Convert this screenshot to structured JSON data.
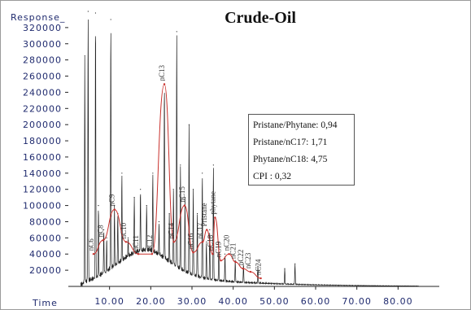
{
  "chart_data": {
    "type": "line",
    "title": "Crude-Oil",
    "ylabel": "Response_",
    "xlabel": "Time",
    "xlim": [
      0,
      90
    ],
    "ylim": [
      0,
      340000
    ],
    "y_ticks": [
      "20000",
      "40000",
      "60000",
      "80000",
      "100000",
      "120000",
      "140000",
      "160000",
      "180000",
      "200000",
      "220000",
      "240000",
      "260000",
      "280000",
      "300000",
      "320000"
    ],
    "x_ticks": [
      "10.00",
      "20.00",
      "30.00",
      "40.00",
      "50.00",
      "60.00",
      "70.00",
      "80.00"
    ],
    "x_tick_values": [
      10,
      20,
      30,
      40,
      50,
      60,
      70,
      80
    ],
    "chromatogram_peaks": [
      {
        "x": 4.0,
        "y": 285000
      },
      {
        "x": 4.8,
        "y": 340000
      },
      {
        "x": 6.6,
        "y": 338000
      },
      {
        "x": 7.3,
        "y": 100000
      },
      {
        "x": 8.6,
        "y": 70000
      },
      {
        "x": 9.3,
        "y": 60000
      },
      {
        "x": 10.3,
        "y": 330000
      },
      {
        "x": 11.2,
        "y": 100000
      },
      {
        "x": 12.0,
        "y": 90000
      },
      {
        "x": 13.0,
        "y": 140000
      },
      {
        "x": 14.5,
        "y": 60000
      },
      {
        "x": 16.0,
        "y": 110000
      },
      {
        "x": 17.5,
        "y": 120000
      },
      {
        "x": 19.0,
        "y": 100000
      },
      {
        "x": 20.5,
        "y": 140000
      },
      {
        "x": 22.0,
        "y": 80000
      },
      {
        "x": 23.3,
        "y": 255000
      },
      {
        "x": 24.5,
        "y": 90000
      },
      {
        "x": 25.5,
        "y": 120000
      },
      {
        "x": 26.3,
        "y": 315000
      },
      {
        "x": 27.2,
        "y": 150000
      },
      {
        "x": 28.3,
        "y": 110000
      },
      {
        "x": 29.3,
        "y": 200000
      },
      {
        "x": 30.3,
        "y": 120000
      },
      {
        "x": 31.3,
        "y": 90000
      },
      {
        "x": 32.5,
        "y": 140000
      },
      {
        "x": 33.5,
        "y": 55000
      },
      {
        "x": 34.3,
        "y": 70000
      },
      {
        "x": 35.2,
        "y": 150000
      },
      {
        "x": 36.5,
        "y": 55000
      },
      {
        "x": 38.0,
        "y": 40000
      },
      {
        "x": 40.5,
        "y": 32000
      },
      {
        "x": 42.5,
        "y": 28000
      },
      {
        "x": 46.0,
        "y": 25000
      },
      {
        "x": 52.5,
        "y": 22000
      },
      {
        "x": 55.0,
        "y": 28000
      }
    ],
    "nalkane_envelope": [
      {
        "label": "nC6",
        "x": 6.1,
        "y": 40000
      },
      {
        "label": "nC8",
        "x": 8.4,
        "y": 57000
      },
      {
        "label": "nC9",
        "x": 11.2,
        "y": 95000
      },
      {
        "label": "nC10",
        "x": 14.0,
        "y": 55000
      },
      {
        "label": "nC11",
        "x": 17.0,
        "y": 40000
      },
      {
        "label": "nC12",
        "x": 20.3,
        "y": 40000
      },
      {
        "label": "nC13",
        "x": 23.3,
        "y": 250000
      },
      {
        "label": "nC14",
        "x": 25.6,
        "y": 55000
      },
      {
        "label": "nC15",
        "x": 28.2,
        "y": 100000
      },
      {
        "label": "nC16",
        "x": 30.3,
        "y": 42000
      },
      {
        "label": "nC17",
        "x": 32.6,
        "y": 55000
      },
      {
        "label": "Pristane",
        "x": 33.6,
        "y": 70000
      },
      {
        "label": "nC18",
        "x": 35.0,
        "y": 40000
      },
      {
        "label": "phytane",
        "x": 35.6,
        "y": 85000
      },
      {
        "label": "nC19",
        "x": 37.0,
        "y": 32000
      },
      {
        "label": "nC20",
        "x": 39.0,
        "y": 40000
      },
      {
        "label": "nC21",
        "x": 40.6,
        "y": 30000
      },
      {
        "label": "nC22",
        "x": 42.4,
        "y": 22000
      },
      {
        "label": "nC23",
        "x": 44.2,
        "y": 18000
      },
      {
        "label": "nC24",
        "x": 46.7,
        "y": 10000
      }
    ],
    "annotations": [
      "Pristane/Phytane: 0,94",
      "Pristane/nC17: 1,71",
      "Phytane/nC18: 4,75",
      "CPI : 0,32"
    ],
    "line_colors": {
      "signal": "#222222",
      "envelope": "#c9302c"
    }
  }
}
